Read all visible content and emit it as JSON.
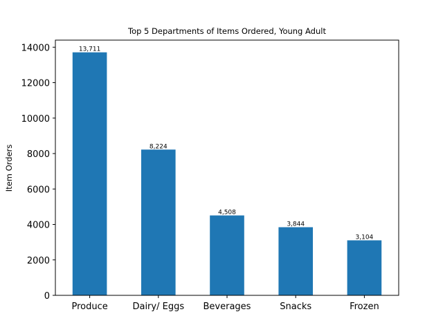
{
  "chart_data": {
    "type": "bar",
    "title": "Top 5 Departments of Items Ordered, Young Adult",
    "xlabel": "",
    "ylabel": "Item Orders",
    "categories": [
      "Produce",
      "Dairy/ Eggs",
      "Beverages",
      "Snacks",
      "Frozen"
    ],
    "values": [
      13711,
      8224,
      4508,
      3844,
      3104
    ],
    "data_labels": [
      "13,711",
      "8,224",
      "4,508",
      "3,844",
      "3,104"
    ],
    "ylim": [
      0,
      14400
    ],
    "yticks": [
      0,
      2000,
      4000,
      6000,
      8000,
      10000,
      12000,
      14000
    ],
    "ytick_labels": [
      "0",
      "2000",
      "4000",
      "6000",
      "8000",
      "10000",
      "12000",
      "14000"
    ],
    "bar_color": "#1f77b4",
    "grid": false,
    "legend": "none"
  }
}
